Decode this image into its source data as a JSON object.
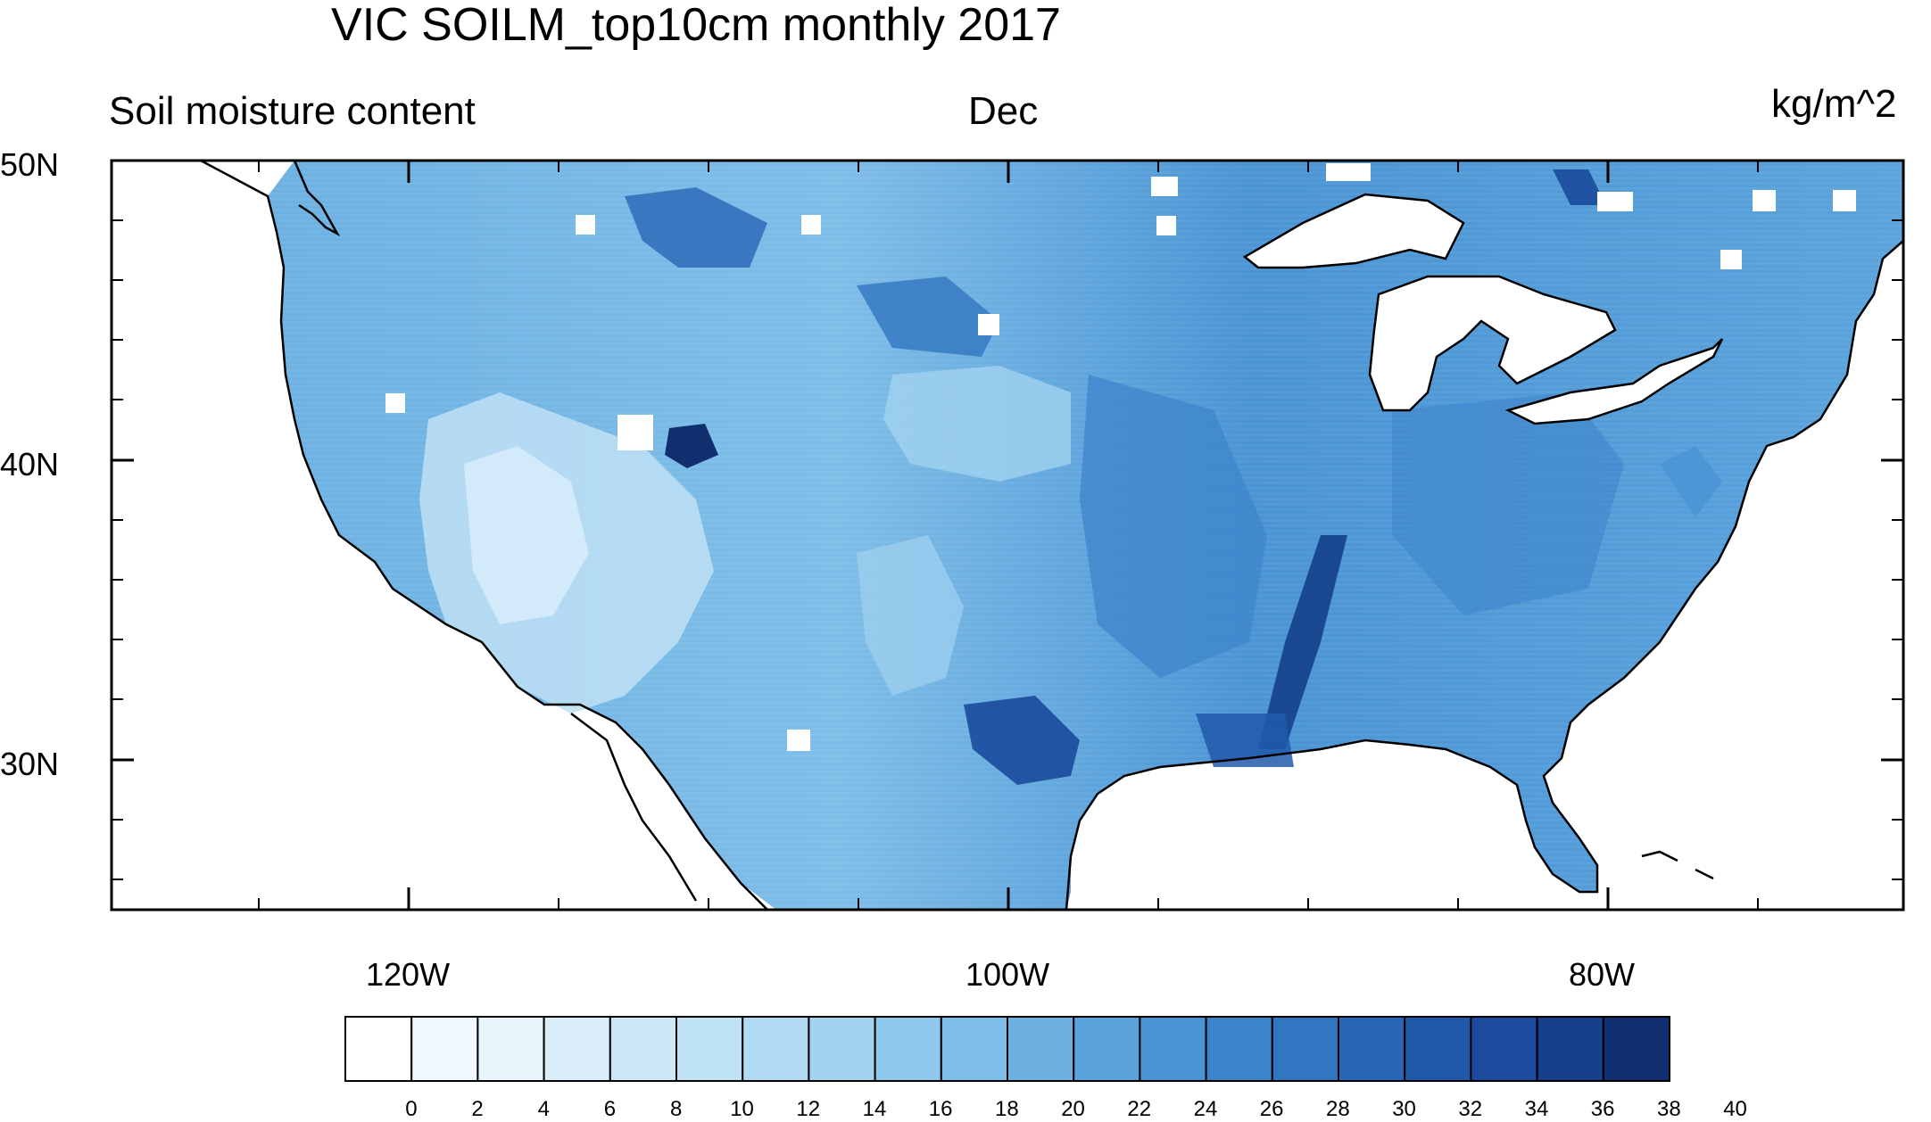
{
  "title": "VIC SOILM_top10cm monthly 2017",
  "left_string": "Soil moisture content",
  "center_string": "Dec",
  "right_string": "kg/m^2",
  "lat_labels": [
    "50N",
    "40N",
    "30N"
  ],
  "lon_labels": [
    "120W",
    "100W",
    "80W"
  ],
  "colorbar": {
    "labels": [
      "0",
      "2",
      "4",
      "6",
      "8",
      "10",
      "12",
      "14",
      "16",
      "18",
      "20",
      "22",
      "24",
      "26",
      "28",
      "30",
      "32",
      "34",
      "36",
      "38",
      "40"
    ],
    "colors": [
      "#ffffff",
      "#f2f9fe",
      "#e6f4fb",
      "#d9eefa",
      "#cce8f7",
      "#bee1f4",
      "#b0daf2",
      "#a1d2f0",
      "#8fc8ed",
      "#7ebde8",
      "#6cb1e2",
      "#5aa3dc",
      "#4a94d4",
      "#3d85cb",
      "#3276c1",
      "#2967b6",
      "#2159aa",
      "#1a4b9c",
      "#15408a",
      "#112f6f"
    ]
  }
}
